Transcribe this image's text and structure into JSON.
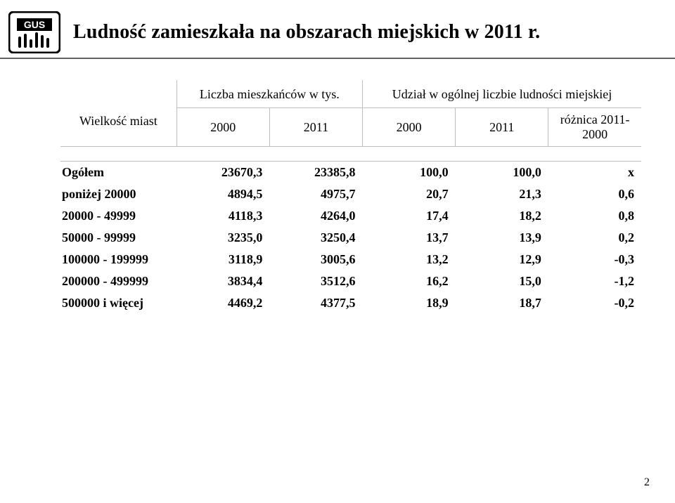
{
  "title": "Ludność zamieszkała na obszarach miejskich w 2011 r.",
  "page_number": "2",
  "logo_text": "GUS",
  "table": {
    "header": {
      "row_label": "Wielkość miast",
      "group1": "Liczba mieszkańców w tys.",
      "group2": "Udział w ogólnej liczbie ludności miejskiej",
      "sub": [
        "2000",
        "2011",
        "2000",
        "2011",
        "różnica 2011-2000"
      ]
    },
    "rows": [
      {
        "label": "Ogółem",
        "c": [
          "23670,3",
          "23385,8",
          "100,0",
          "100,0",
          "x"
        ],
        "bold": true
      },
      {
        "label": "poniżej 20000",
        "c": [
          "4894,5",
          "4975,7",
          "20,7",
          "21,3",
          "0,6"
        ],
        "bold": true
      },
      {
        "label": "20000 - 49999",
        "c": [
          "4118,3",
          "4264,0",
          "17,4",
          "18,2",
          "0,8"
        ],
        "bold": true
      },
      {
        "label": "50000 - 99999",
        "c": [
          "3235,0",
          "3250,4",
          "13,7",
          "13,9",
          "0,2"
        ],
        "bold": true
      },
      {
        "label": "100000 - 199999",
        "c": [
          "3118,9",
          "3005,6",
          "13,2",
          "12,9",
          "-0,3"
        ],
        "bold": true
      },
      {
        "label": "200000 - 499999",
        "c": [
          "3834,4",
          "3512,6",
          "16,2",
          "15,0",
          "-1,2"
        ],
        "bold": true
      },
      {
        "label": "500000  i więcej",
        "c": [
          "4469,2",
          "4377,5",
          "18,9",
          "18,7",
          "-0,2"
        ],
        "bold": true
      }
    ]
  }
}
